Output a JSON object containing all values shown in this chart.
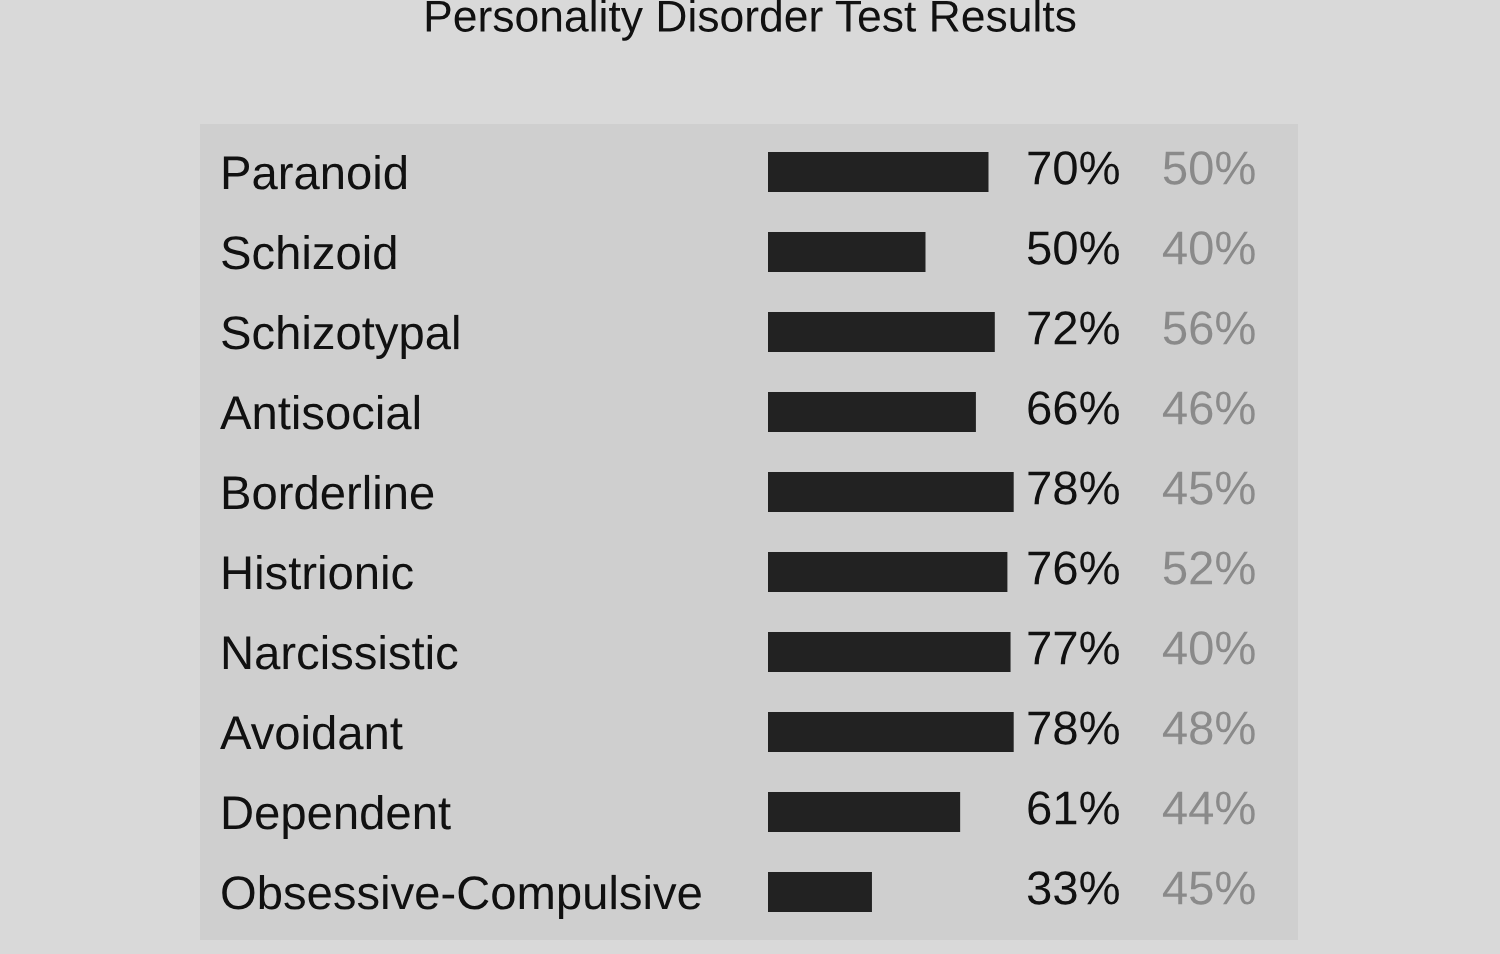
{
  "chart_data": {
    "type": "bar",
    "orientation": "horizontal",
    "title": "Personality Disorder Test Results",
    "categories": [
      "Paranoid",
      "Schizoid",
      "Schizotypal",
      "Antisocial",
      "Borderline",
      "Histrionic",
      "Narcissistic",
      "Avoidant",
      "Dependent",
      "Obsessive-Compulsive"
    ],
    "values": [
      70,
      50,
      72,
      66,
      78,
      76,
      77,
      78,
      61,
      33
    ],
    "value_labels": [
      "70%",
      "50%",
      "72%",
      "66%",
      "78%",
      "76%",
      "77%",
      "78%",
      "61%",
      "33%"
    ],
    "color": "#222222",
    "xlim": [
      0,
      80
    ],
    "tick_labels": "y",
    "grid": false,
    "legend": false,
    "annotations": [
      "50%",
      "40%",
      "56%",
      "46%",
      "45%",
      "52%",
      "40%",
      "48%",
      "44%",
      "45%"
    ]
  }
}
